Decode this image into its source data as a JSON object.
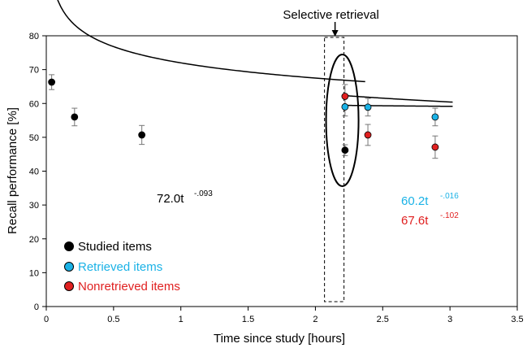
{
  "chart_data": {
    "type": "scatter",
    "title": "",
    "xlabel": "Time since study [hours]",
    "ylabel": "Recall performance [%]",
    "xlim": [
      0,
      3.5
    ],
    "ylim": [
      0,
      80
    ],
    "xticks": [
      0,
      0.5,
      1,
      1.5,
      2,
      2.5,
      3,
      3.5
    ],
    "xtick_labels": [
      "0",
      "0.5",
      "1",
      "1.5",
      "2",
      "2.5",
      "3",
      "3.5"
    ],
    "yticks": [
      0,
      10,
      20,
      30,
      40,
      50,
      60,
      70,
      80
    ],
    "ytick_labels": [
      "0",
      "10",
      "20",
      "30",
      "40",
      "50",
      "60",
      "70",
      "80"
    ],
    "grid": false,
    "legend_position": "bottom-left",
    "series": [
      {
        "name": "Studied items",
        "color": "#000000",
        "x": [
          0.04,
          0.21,
          0.71,
          2.22
        ],
        "y": [
          66.3,
          56.0,
          50.7,
          46.2
        ],
        "err": [
          2.2,
          2.6,
          2.8,
          1.6
        ],
        "fit": {
          "a": 72.0,
          "b": -0.093,
          "x_range": [
            0.03,
            2.37
          ]
        }
      },
      {
        "name": "Retrieved items",
        "color": "#1ab2e6",
        "x": [
          2.22,
          2.39,
          2.89
        ],
        "y": [
          59.0,
          58.9,
          56.0
        ],
        "err": [
          2.7,
          2.6,
          2.6
        ],
        "fit": {
          "a": 60.2,
          "b": -0.016,
          "x_range": [
            2.2,
            3.02
          ]
        }
      },
      {
        "name": "Nonretrieved items",
        "color": "#e02020",
        "x": [
          2.22,
          2.39,
          2.89
        ],
        "y": [
          62.1,
          50.7,
          47.1
        ],
        "err": [
          3.5,
          3.1,
          3.3
        ],
        "fit": {
          "a": 67.6,
          "b": -0.102,
          "x_range": [
            2.2,
            3.02
          ]
        }
      }
    ],
    "annotations": {
      "selective_retrieval": {
        "label": "Selective retrieval",
        "x": 2.14
      },
      "equations": [
        {
          "base": "72.0t",
          "exp": "-.093",
          "color": "#000000"
        },
        {
          "base": "60.2t",
          "exp": "-.016",
          "color": "#1ab2e6"
        },
        {
          "base": "67.6t",
          "exp": "-.102",
          "color": "#e02020"
        }
      ]
    }
  }
}
